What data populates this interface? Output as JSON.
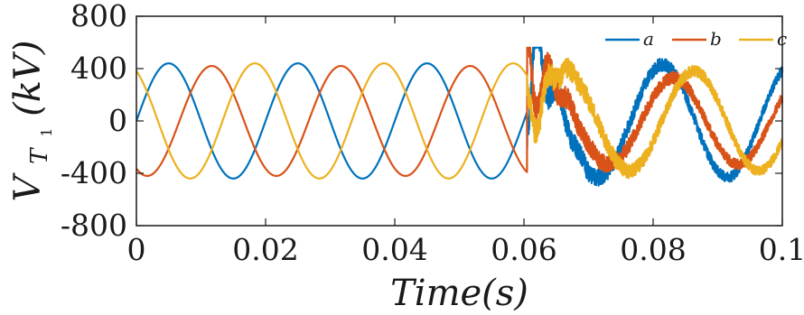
{
  "chart_data": {
    "type": "line",
    "xlabel": "Time(s)",
    "ylabel_main": "V",
    "ylabel_sub": "T",
    "ylabel_subsub": "1",
    "ylabel_unit": "(kV)",
    "xlim": [
      0,
      0.1
    ],
    "ylim": [
      -800,
      800
    ],
    "xticks": [
      0,
      0.02,
      0.04,
      0.06,
      0.08,
      0.1
    ],
    "xtick_labels": [
      "0",
      "0.02",
      "0.04",
      "0.06",
      "0.08",
      "0.1"
    ],
    "yticks": [
      800,
      400,
      0,
      -400,
      -800
    ],
    "ytick_labels": [
      "800",
      "400",
      "0",
      "-400",
      "-800"
    ],
    "grid": false,
    "legend_position": "top-right",
    "fault_time": 0.0605,
    "frequency_hz": 50,
    "series": [
      {
        "name": "a",
        "color": "#0072BD",
        "phase_deg": 0,
        "pre_amplitude": 440,
        "post_amplitude": 430
      },
      {
        "name": "b",
        "color": "#D95319",
        "phase_deg": -120,
        "pre_amplitude": 420,
        "post_amplitude": 330
      },
      {
        "name": "c",
        "color": "#EDB120",
        "phase_deg": 120,
        "pre_amplitude": 440,
        "post_amplitude": 380
      }
    ]
  }
}
